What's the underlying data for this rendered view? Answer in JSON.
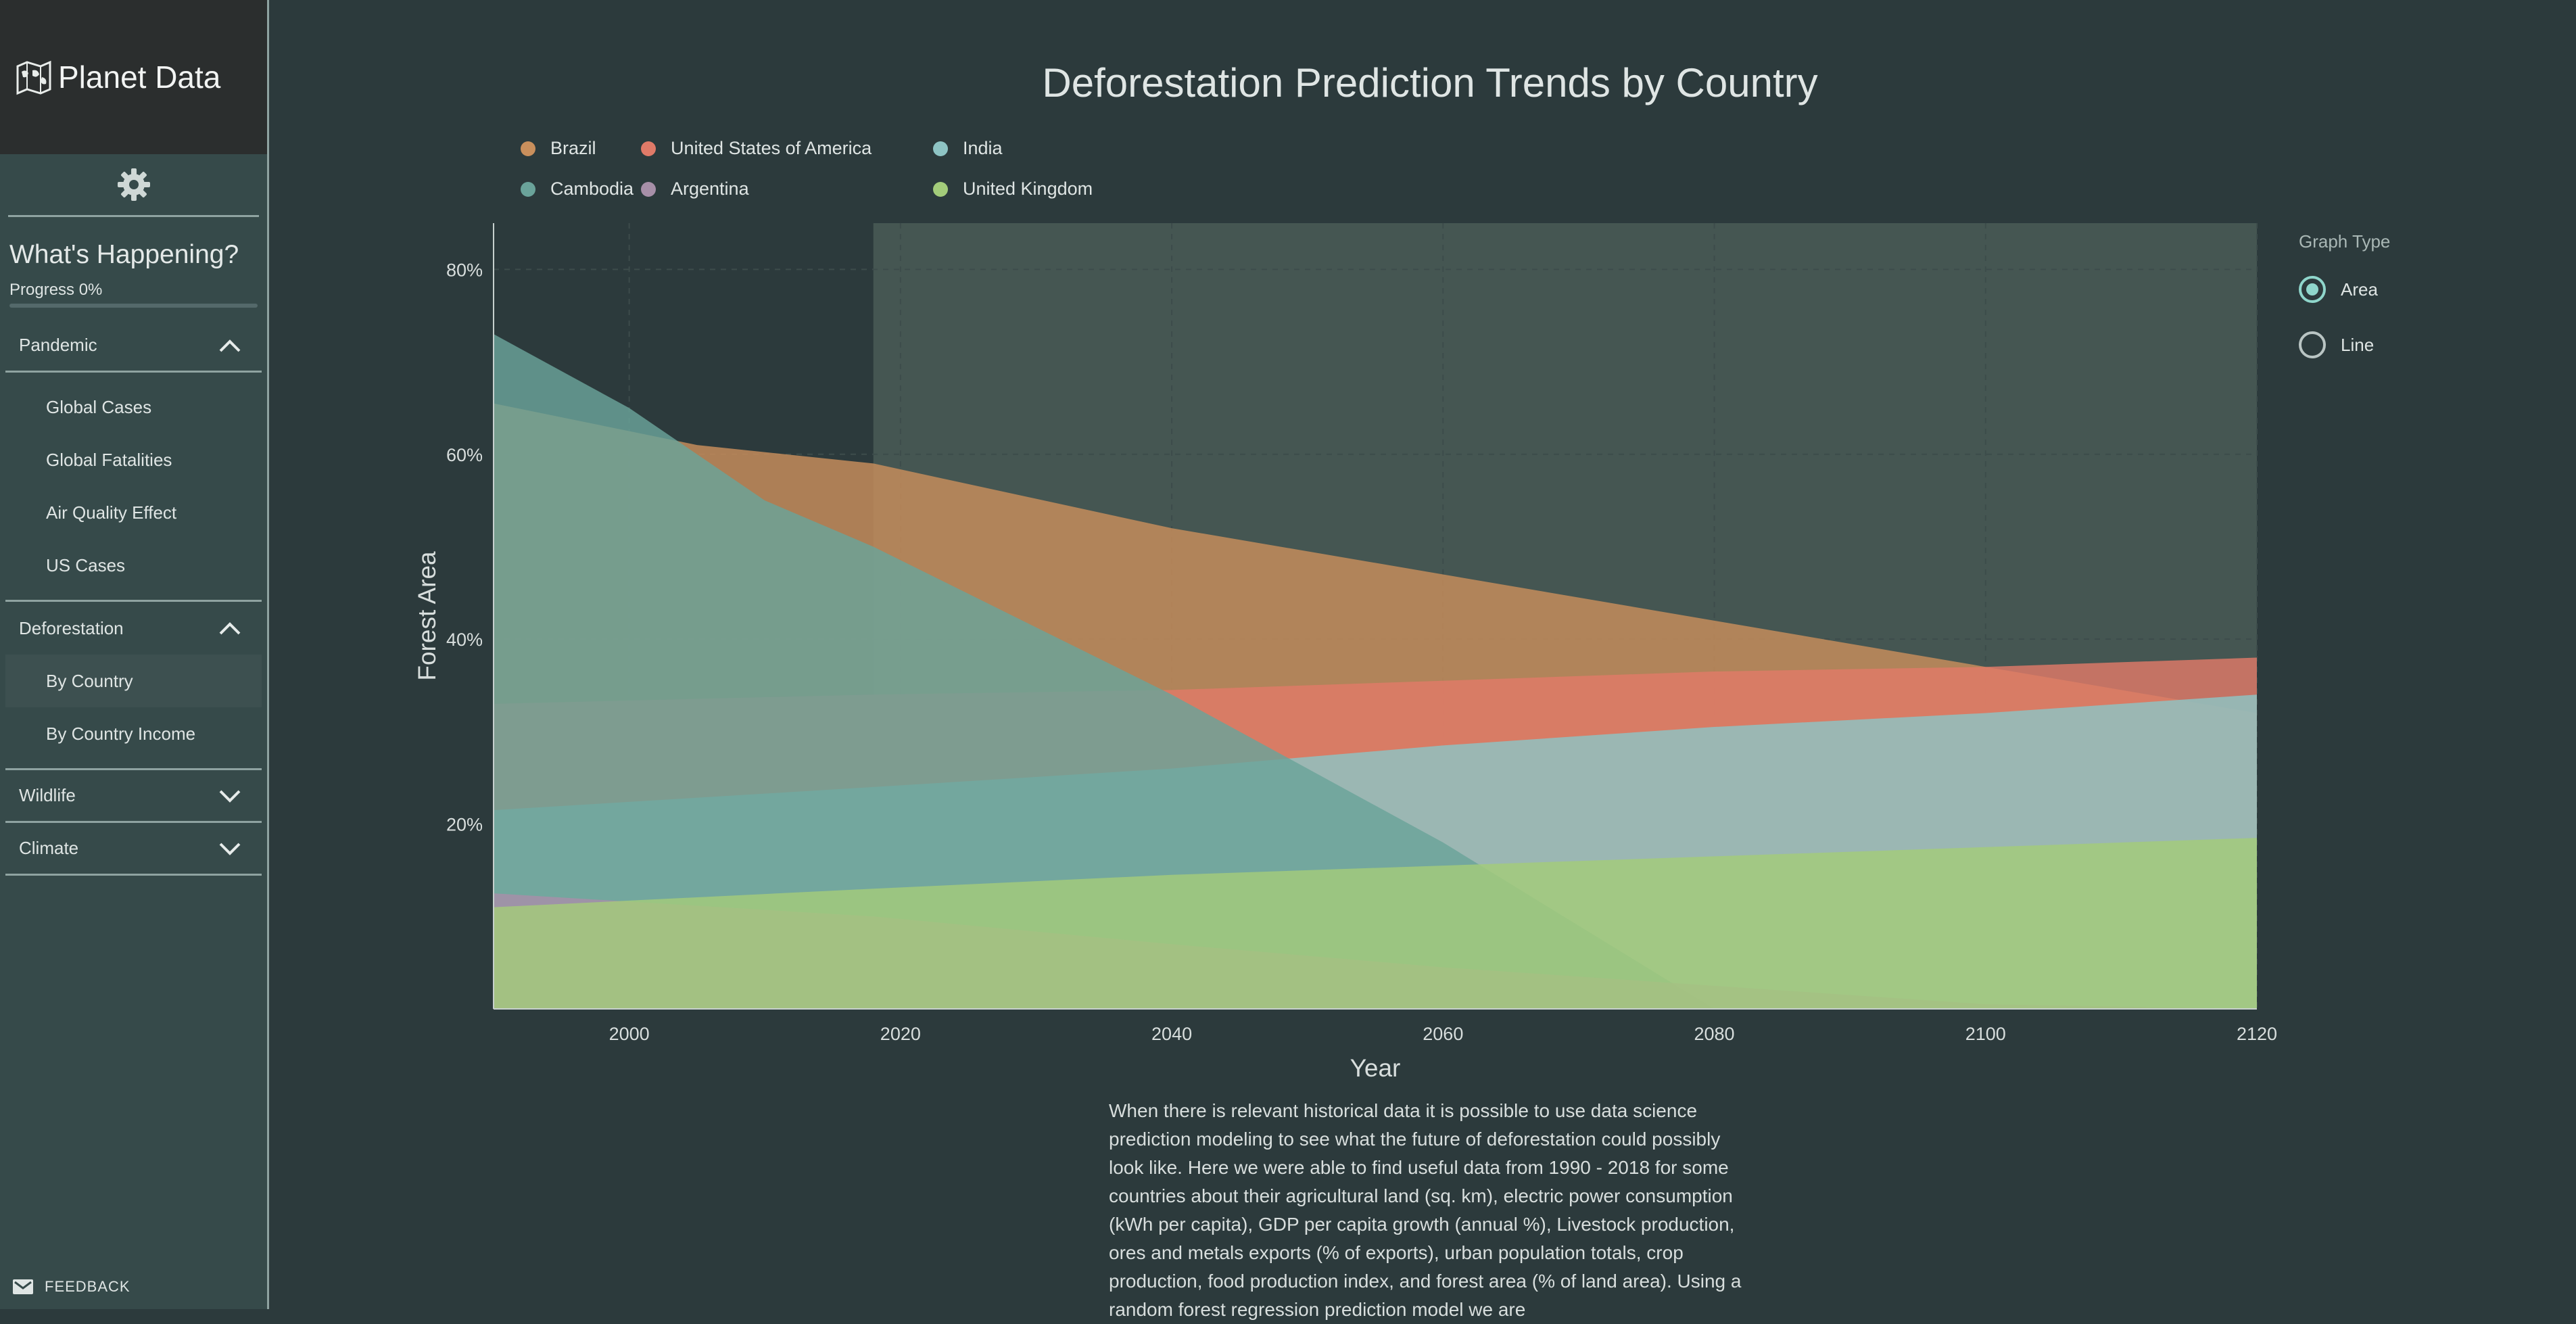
{
  "brand": {
    "name": "Planet Data"
  },
  "sidebar": {
    "heading": "What's Happening?",
    "progress_label": "Progress 0%",
    "progress": 0,
    "sections": [
      {
        "label": "Pandemic",
        "expanded": true,
        "items": [
          {
            "label": "Global Cases"
          },
          {
            "label": "Global Fatalities"
          },
          {
            "label": "Air Quality Effect"
          },
          {
            "label": "US Cases"
          }
        ]
      },
      {
        "label": "Deforestation",
        "expanded": true,
        "items": [
          {
            "label": "By Country",
            "active": true
          },
          {
            "label": "By Country Income"
          }
        ]
      },
      {
        "label": "Wildlife",
        "expanded": false
      },
      {
        "label": "Climate",
        "expanded": false
      }
    ],
    "feedback_label": "FEEDBACK"
  },
  "graph_type": {
    "label": "Graph Type",
    "options": [
      {
        "label": "Area",
        "selected": true
      },
      {
        "label": "Line",
        "selected": false
      }
    ]
  },
  "chart_data": {
    "type": "area",
    "title": "Deforestation Prediction Trends by Country",
    "xlabel": "Year",
    "ylabel": "Forest Area",
    "xlim": [
      1990,
      2120
    ],
    "ylim": [
      0,
      85
    ],
    "x_ticks": [
      "2000",
      "2020",
      "2040",
      "2060",
      "2080",
      "2100",
      "2120"
    ],
    "y_ticks": [
      "20%",
      "40%",
      "60%",
      "80%"
    ],
    "prediction_region_start": 2018,
    "legend_position": "top-left",
    "series": [
      {
        "name": "Brazil",
        "color": "#c98f5c",
        "x": [
          1990,
          2005,
          2018,
          2040,
          2060,
          2080,
          2100,
          2120
        ],
        "y": [
          65.5,
          61,
          59,
          52,
          47,
          42,
          37,
          32
        ]
      },
      {
        "name": "United States of America",
        "color": "#e07a68",
        "x": [
          1990,
          2018,
          2040,
          2080,
          2100,
          2120
        ],
        "y": [
          33,
          34,
          34.5,
          36.5,
          37,
          38
        ]
      },
      {
        "name": "India",
        "color": "#8ec4c4",
        "x": [
          1990,
          2018,
          2040,
          2060,
          2080,
          2100,
          2120
        ],
        "y": [
          21.5,
          24,
          26,
          28.5,
          30.5,
          32,
          34
        ]
      },
      {
        "name": "Cambodia",
        "color": "#6aa39a",
        "x": [
          1990,
          2000,
          2010,
          2018,
          2040,
          2060,
          2080
        ],
        "y": [
          73,
          65,
          55,
          50,
          34,
          18,
          0
        ]
      },
      {
        "name": "Argentina",
        "color": "#a78fa8",
        "x": [
          1990,
          2018,
          2040,
          2060,
          2080,
          2100,
          2120
        ],
        "y": [
          12.5,
          10,
          7,
          4.5,
          2.5,
          0.5,
          0
        ]
      },
      {
        "name": "United Kingdom",
        "color": "#a3cc7a",
        "x": [
          1990,
          2018,
          2040,
          2060,
          2080,
          2100,
          2120
        ],
        "y": [
          11,
          13,
          14.5,
          15.5,
          16.5,
          17.5,
          18.5
        ]
      }
    ]
  },
  "description": "When there is relevant historical data it is possible to use data science prediction modeling to see what the future of deforestation could possibly look like. Here we were able to find useful data from 1990 - 2018 for some countries about their agricultural land (sq. km), electric power consumption (kWh per capita), GDP per capita growth (annual %), Livestock production, ores and metals exports (% of exports), urban population totals, crop production, food production index, and forest area (% of land area). Using a random forest regression prediction model we are"
}
